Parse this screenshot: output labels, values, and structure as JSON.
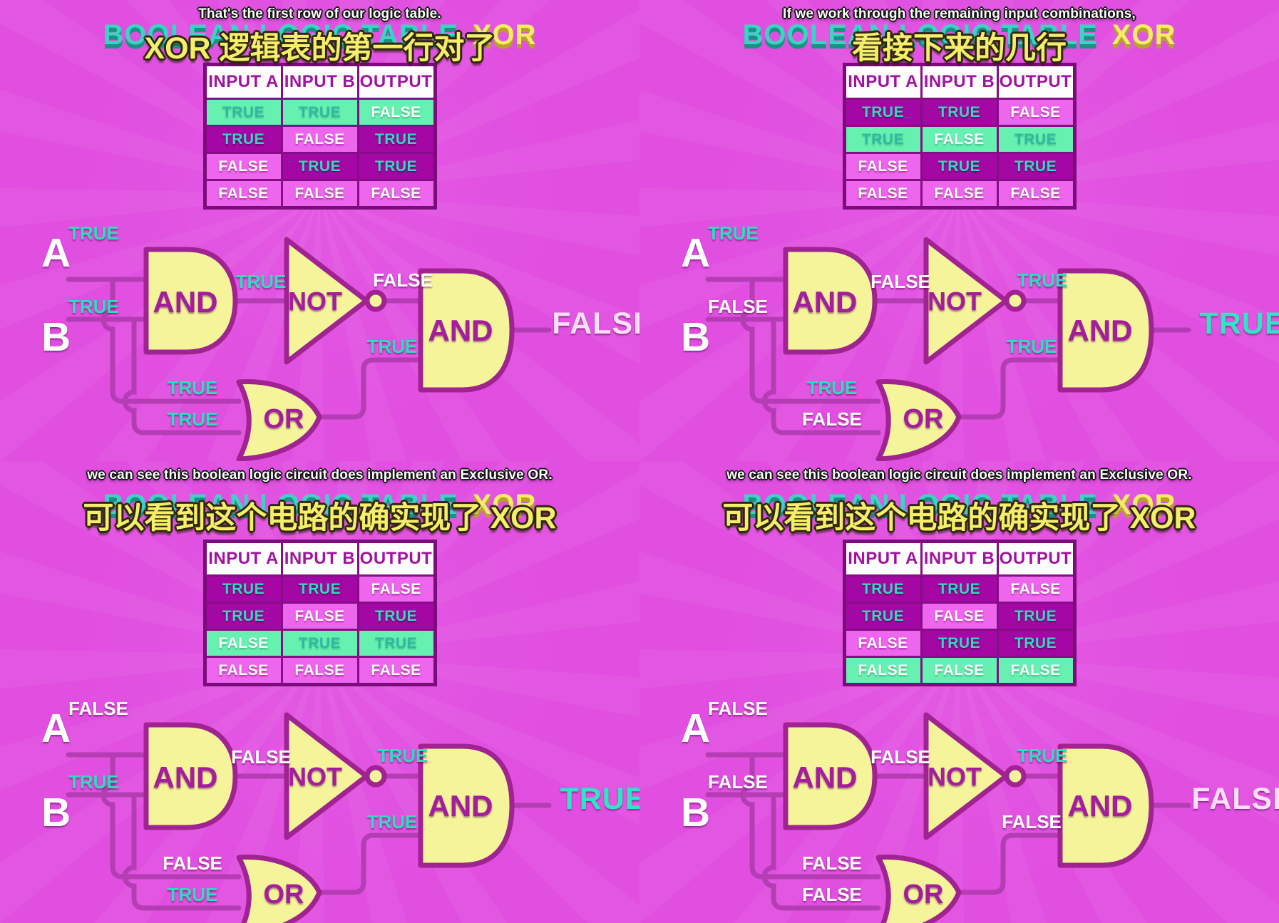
{
  "colors": {
    "background_magenta": "#e14fe1",
    "wire_purple": "#b43db4",
    "gate_fill_yellow": "#f5f49b",
    "gate_stroke_purple": "#9f2390",
    "true_teal": "#2fdcbd",
    "false_white": "#ffffff",
    "highlight_green": "#67f1b0",
    "cell_dark_purple": "#a507a5",
    "cell_light_pink": "#ee66ee",
    "subtitle_yellow": "#f4ee6a"
  },
  "table_header": [
    "INPUT A",
    "INPUT B",
    "OUTPUT"
  ],
  "ghost_title": {
    "main": "BOOLEAN LOGIC TABLE",
    "accent": "XOR"
  },
  "gate_labels": {
    "and": "AND",
    "not": "NOT",
    "or": "OR"
  },
  "io_labels": {
    "a": "A",
    "b": "B"
  },
  "quadrants": [
    {
      "id": "top-left",
      "subtitle_en": "That's the first row of our logic table.",
      "subtitle_zh": "XOR 逻辑表的第一行对了",
      "table": {
        "highlight_row": 0,
        "rows": [
          [
            "TRUE",
            "TRUE",
            "FALSE"
          ],
          [
            "TRUE",
            "FALSE",
            "TRUE"
          ],
          [
            "FALSE",
            "TRUE",
            "TRUE"
          ],
          [
            "FALSE",
            "FALSE",
            "FALSE"
          ]
        ]
      },
      "circuit": {
        "a": "TRUE",
        "b": "TRUE",
        "and1_out": "TRUE",
        "not_out": "FALSE",
        "or_in_top": "TRUE",
        "or_in_bottom": "TRUE",
        "or_out": "TRUE",
        "output": "FALSE"
      }
    },
    {
      "id": "top-right",
      "subtitle_en": "If we work through the remaining input combinations,",
      "subtitle_zh": "看接下来的几行",
      "table": {
        "highlight_row": 1,
        "rows": [
          [
            "TRUE",
            "TRUE",
            "FALSE"
          ],
          [
            "TRUE",
            "FALSE",
            "TRUE"
          ],
          [
            "FALSE",
            "TRUE",
            "TRUE"
          ],
          [
            "FALSE",
            "FALSE",
            "FALSE"
          ]
        ]
      },
      "circuit": {
        "a": "TRUE",
        "b": "FALSE",
        "and1_out": "FALSE",
        "not_out": "TRUE",
        "or_in_top": "TRUE",
        "or_in_bottom": "FALSE",
        "or_out": "TRUE",
        "output": "TRUE"
      }
    },
    {
      "id": "bottom-left",
      "subtitle_en": "we can see this boolean logic circuit does implement an Exclusive OR.",
      "subtitle_zh": "可以看到这个电路的确实现了 XOR",
      "table": {
        "highlight_row": 2,
        "rows": [
          [
            "TRUE",
            "TRUE",
            "FALSE"
          ],
          [
            "TRUE",
            "FALSE",
            "TRUE"
          ],
          [
            "FALSE",
            "TRUE",
            "TRUE"
          ],
          [
            "FALSE",
            "FALSE",
            "FALSE"
          ]
        ]
      },
      "circuit": {
        "a": "FALSE",
        "b": "TRUE",
        "and1_out": "FALSE",
        "not_out": "TRUE",
        "or_in_top": "FALSE",
        "or_in_bottom": "TRUE",
        "or_out": "TRUE",
        "output": "TRUE"
      }
    },
    {
      "id": "bottom-right",
      "subtitle_en": "we can see this boolean logic circuit does implement an Exclusive OR.",
      "subtitle_zh": "可以看到这个电路的确实现了 XOR",
      "table": {
        "highlight_row": 3,
        "rows": [
          [
            "TRUE",
            "TRUE",
            "FALSE"
          ],
          [
            "TRUE",
            "FALSE",
            "TRUE"
          ],
          [
            "FALSE",
            "TRUE",
            "TRUE"
          ],
          [
            "FALSE",
            "FALSE",
            "FALSE"
          ]
        ]
      },
      "circuit": {
        "a": "FALSE",
        "b": "FALSE",
        "and1_out": "FALSE",
        "not_out": "TRUE",
        "or_in_top": "FALSE",
        "or_in_bottom": "FALSE",
        "or_out": "FALSE",
        "output": "FALSE"
      }
    }
  ]
}
